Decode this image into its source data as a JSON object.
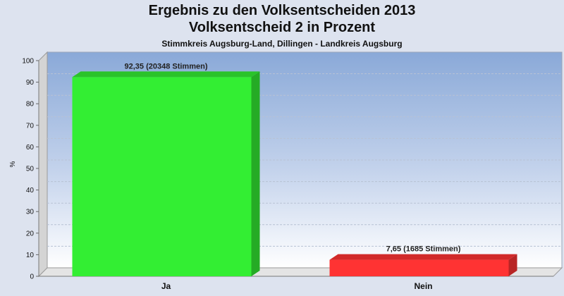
{
  "chart_data": {
    "type": "bar",
    "title": "Ergebnis zu den Volksentscheiden 2013",
    "title2": "Volksentscheid 2 in Prozent",
    "subtitle": "Stimmkreis Augsburg-Land, Dillingen - Landkreis Augsburg",
    "ylabel": "%",
    "xlabel": "",
    "ylim": [
      0,
      100
    ],
    "yticks": [
      0,
      10,
      20,
      30,
      40,
      50,
      60,
      70,
      80,
      90,
      100
    ],
    "categories": [
      "Ja",
      "Nein"
    ],
    "values": [
      92.35,
      7.65
    ],
    "data_labels": [
      "92,35 (20348 Stimmen)",
      "7,65 (1685 Stimmen)"
    ],
    "colors": [
      "#33ee33",
      "#ff3333"
    ],
    "grid": true,
    "legend": "none"
  }
}
